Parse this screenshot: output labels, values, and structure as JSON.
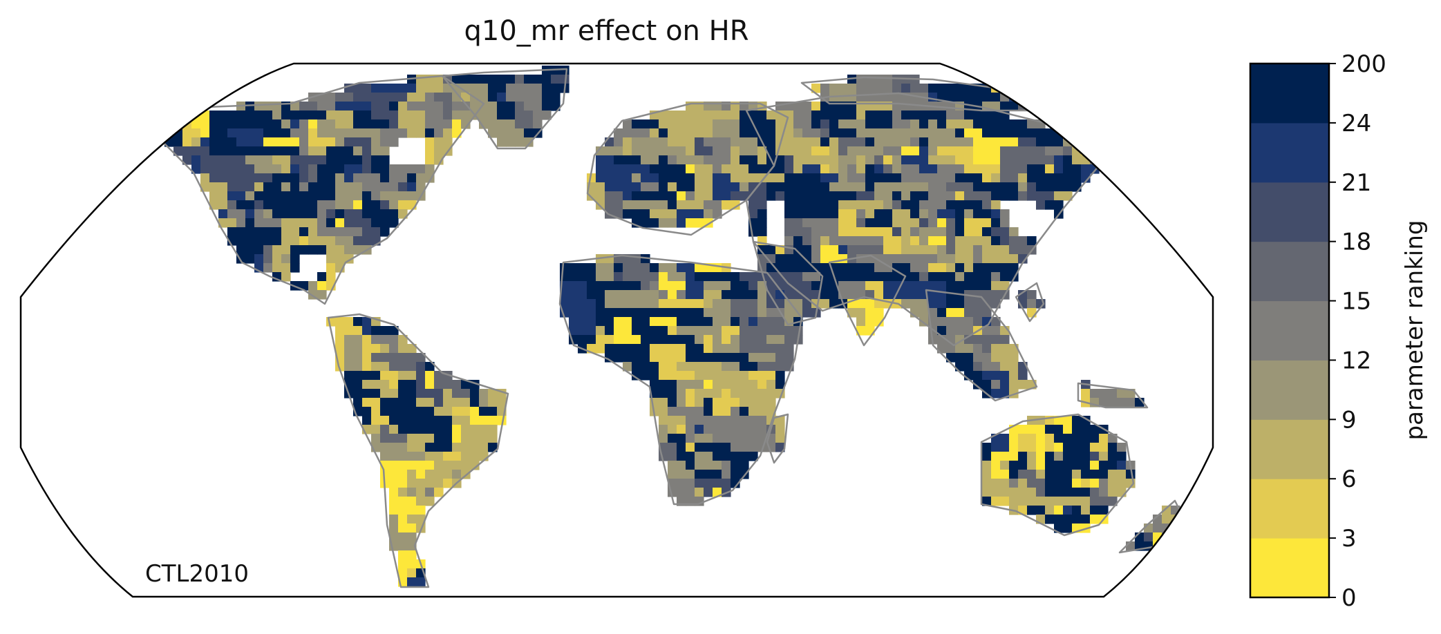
{
  "title": "q10_mr effect on HR",
  "map_label": "CTL2010",
  "colorbar": {
    "label": "parameter ranking",
    "ticks": [
      "0",
      "3",
      "6",
      "9",
      "12",
      "15",
      "18",
      "21",
      "24",
      "200"
    ],
    "colors": [
      "#fde73a",
      "#e3cb52",
      "#bdb068",
      "#9b9677",
      "#7f7e7b",
      "#646771",
      "#434d6a",
      "#1c3871",
      "#002150"
    ]
  },
  "map": {
    "projection": "Robinson",
    "ocean_color": "#ffffff",
    "coastline_color": "#8a8a8a"
  }
}
